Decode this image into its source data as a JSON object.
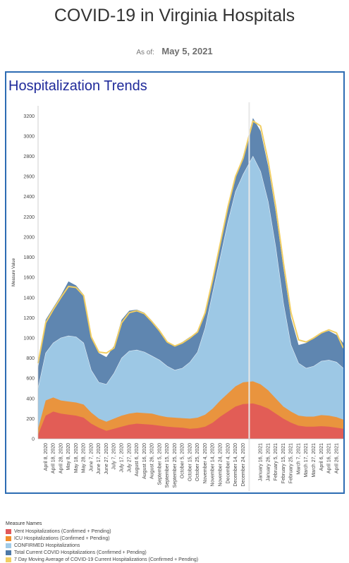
{
  "header": {
    "title": "COVID-19 in Virginia Hospitals",
    "as_of_label": "As of:",
    "as_of_value": "May 5, 2021"
  },
  "chart_title": "Hospitalization Trends",
  "legend": {
    "title": "Measure Names",
    "items": [
      {
        "label": "Vent Hospitalizations (Confirmed + Pending)",
        "color": "#e15759"
      },
      {
        "label": "ICU Hospitalizations (Confirmed + Pending)",
        "color": "#f28e2b"
      },
      {
        "label": "CONFIRMED Hospitalizations",
        "color": "#a0cbe8"
      },
      {
        "label": "Total Current COVID Hospitalizations (Confirmed + Pending)",
        "color": "#4e79a7"
      },
      {
        "label": "7 Day Moving Average of COVID-19 Current Hospitalizations (Confirmed + Pending)",
        "color": "#f1ce63"
      }
    ]
  },
  "chart_data": {
    "type": "area",
    "title": "Hospitalization Trends",
    "ylabel": "Measure Value",
    "xlabel": "",
    "ylim": [
      0,
      3300
    ],
    "yticks": [
      0,
      200,
      400,
      600,
      800,
      1000,
      1200,
      1400,
      1600,
      1800,
      2000,
      2200,
      2400,
      2600,
      2800,
      3000,
      3200
    ],
    "grid": "off",
    "legend_position": "bottom",
    "x_tick_labels": [
      "April 8, 2020",
      "April 18, 2020",
      "April 28, 2020",
      "May 8, 2020",
      "May 18, 2020",
      "May 28, 2020",
      "June 7, 2020",
      "June 17, 2020",
      "June 27, 2020",
      "July 7, 2020",
      "July 17, 2020",
      "July 27, 2020",
      "August 6, 2020",
      "August 16, 2020",
      "August 26, 2020",
      "September 5, 2020",
      "September 15, 2020",
      "September 25, 2020",
      "October 5, 2020",
      "October 15, 2020",
      "October 25, 2020",
      "November 4, 2020",
      "November 14, 2020",
      "November 24, 2020",
      "December 4, 2020",
      "December 14, 2020",
      "December 24, 2020",
      "January 16, 2021",
      "January 26, 2021",
      "February 5, 2021",
      "February 15, 2021",
      "February 25, 2021",
      "March 7, 2021",
      "March 17, 2021",
      "March 27, 2021",
      "April 6, 2021",
      "April 16, 2021",
      "April 26, 2021"
    ],
    "x": [
      "2020-03-29",
      "2020-04-08",
      "2020-04-18",
      "2020-04-28",
      "2020-05-08",
      "2020-05-18",
      "2020-05-28",
      "2020-06-07",
      "2020-06-17",
      "2020-06-27",
      "2020-07-07",
      "2020-07-17",
      "2020-07-27",
      "2020-08-06",
      "2020-08-16",
      "2020-08-26",
      "2020-09-05",
      "2020-09-15",
      "2020-09-25",
      "2020-10-05",
      "2020-10-15",
      "2020-10-25",
      "2020-11-04",
      "2020-11-14",
      "2020-11-24",
      "2020-12-04",
      "2020-12-14",
      "2020-12-24",
      "2021-01-06",
      "2021-01-16",
      "2021-01-26",
      "2021-02-05",
      "2021-02-15",
      "2021-02-25",
      "2021-03-07",
      "2021-03-17",
      "2021-03-27",
      "2021-04-06",
      "2021-04-16",
      "2021-04-26",
      "2021-05-05"
    ],
    "series": [
      {
        "name": "Vent Hospitalizations (Confirmed + Pending)",
        "color": "#e15759",
        "values": [
          40,
          230,
          270,
          250,
          240,
          230,
          210,
          150,
          110,
          80,
          100,
          120,
          140,
          150,
          145,
          140,
          130,
          120,
          115,
          110,
          100,
          105,
          120,
          160,
          220,
          270,
          320,
          345,
          350,
          330,
          300,
          250,
          200,
          160,
          130,
          120,
          120,
          125,
          120,
          110,
          100
        ]
      },
      {
        "name": "ICU Hospitalizations (Confirmed + Pending)",
        "color": "#f28e2b",
        "values": [
          100,
          380,
          410,
          380,
          370,
          360,
          340,
          260,
          200,
          170,
          200,
          230,
          250,
          260,
          255,
          250,
          230,
          215,
          210,
          205,
          200,
          210,
          240,
          300,
          380,
          450,
          520,
          560,
          570,
          540,
          480,
          400,
          320,
          270,
          230,
          220,
          220,
          235,
          230,
          215,
          190
        ]
      },
      {
        "name": "CONFIRMED Hospitalizations",
        "color": "#a0cbe8",
        "values": [
          500,
          850,
          950,
          1000,
          1020,
          1010,
          950,
          680,
          560,
          540,
          650,
          800,
          870,
          880,
          860,
          820,
          780,
          720,
          680,
          700,
          760,
          860,
          1100,
          1450,
          1800,
          2150,
          2450,
          2620,
          2800,
          2650,
          2350,
          1900,
          1350,
          930,
          750,
          700,
          720,
          770,
          780,
          760,
          700
        ]
      },
      {
        "name": "Total Current COVID Hospitalizations (Confirmed + Pending)",
        "color": "#4e79a7",
        "values": [
          700,
          1180,
          1300,
          1420,
          1560,
          1520,
          1430,
          1000,
          850,
          810,
          920,
          1180,
          1270,
          1280,
          1250,
          1170,
          1080,
          960,
          920,
          960,
          1010,
          1050,
          1260,
          1600,
          1950,
          2300,
          2600,
          2800,
          3180,
          3050,
          2700,
          2250,
          1700,
          1200,
          930,
          950,
          1000,
          1050,
          1070,
          1030,
          950
        ]
      },
      {
        "name": "7 Day Moving Average of COVID-19 Current Hospitalizations (Confirmed + Pending)",
        "color": "#f1ce63",
        "values": [
          750,
          1150,
          1280,
          1400,
          1510,
          1500,
          1420,
          1010,
          860,
          850,
          900,
          1150,
          1250,
          1270,
          1240,
          1160,
          1070,
          960,
          920,
          950,
          1000,
          1060,
          1250,
          1580,
          1940,
          2300,
          2600,
          2780,
          3150,
          3100,
          2750,
          2300,
          1750,
          1250,
          980,
          960,
          1000,
          1050,
          1080,
          1050,
          900
        ]
      }
    ]
  }
}
